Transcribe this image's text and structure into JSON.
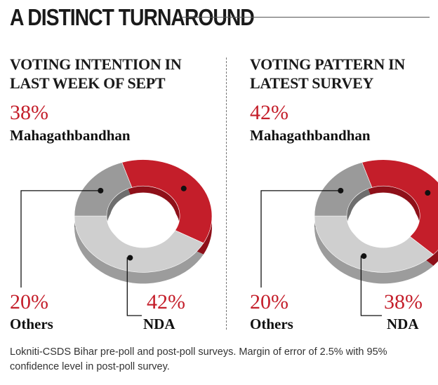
{
  "headline": "A DISTINCT TURNAROUND",
  "footnote": "Lokniti-CSDS Bihar pre-poll and post-poll surveys. Margin of error of 2.5% with 95% confidence level in post-poll survey.",
  "colors": {
    "mahagathbandhan": "#c41e2a",
    "nda": "#cfcfcf",
    "others": "#9a9a9a",
    "text_accent": "#c41e2a"
  },
  "chart_data": [
    {
      "type": "pie",
      "title": "VOTING INTENTION IN LAST WEEK OF SEPT",
      "categories": [
        "Mahagathbandhan",
        "NDA",
        "Others"
      ],
      "values": [
        38,
        42,
        20
      ],
      "labels": {
        "mahagathbandhan": {
          "pct": "38%",
          "name": "Mahagathbandhan"
        },
        "nda": {
          "pct": "42%",
          "name": "NDA"
        },
        "others": {
          "pct": "20%",
          "name": "Others"
        }
      }
    },
    {
      "type": "pie",
      "title": "VOTING PATTERN IN LATEST SURVEY",
      "categories": [
        "Mahagathbandhan",
        "NDA",
        "Others"
      ],
      "values": [
        42,
        38,
        20
      ],
      "labels": {
        "mahagathbandhan": {
          "pct": "42%",
          "name": "Mahagathbandhan"
        },
        "nda": {
          "pct": "38%",
          "name": "NDA"
        },
        "others": {
          "pct": "20%",
          "name": "Others"
        }
      }
    }
  ]
}
